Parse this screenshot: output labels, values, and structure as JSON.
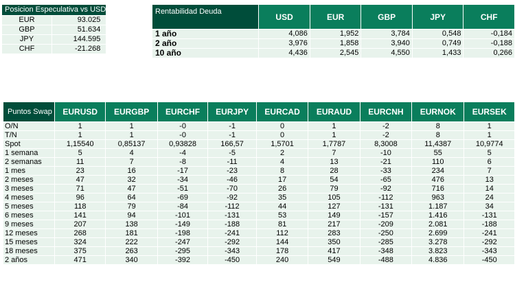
{
  "posicion": {
    "title": "Posicion Especulativa vs USD",
    "rows": [
      {
        "label": "EUR",
        "value": "93.025"
      },
      {
        "label": "GBP",
        "value": "51.634"
      },
      {
        "label": "JPY",
        "value": "144.595"
      },
      {
        "label": "CHF",
        "value": "-21.268"
      }
    ]
  },
  "rentabilidad": {
    "title": "Rentabilidad Deuda",
    "currencies": [
      "USD",
      "EUR",
      "GBP",
      "JPY",
      "CHF"
    ],
    "rows": [
      {
        "label": "1 año",
        "values": [
          "4,086",
          "1,952",
          "3,784",
          "0,548",
          "-0,184"
        ]
      },
      {
        "label": "2 año",
        "values": [
          "3,976",
          "1,858",
          "3,940",
          "0,749",
          "-0,188"
        ]
      },
      {
        "label": "10 año",
        "values": [
          "4,436",
          "2,545",
          "4,550",
          "1,433",
          "0,266"
        ]
      }
    ]
  },
  "swap": {
    "title": "Puntos Swap",
    "currencies": [
      "EURUSD",
      "EURGBP",
      "EURCHF",
      "EURJPY",
      "EURCAD",
      "EURAUD",
      "EURCNH",
      "EURNOK",
      "EURSEK"
    ],
    "rows": [
      {
        "label": "O/N",
        "values": [
          "1",
          "1",
          "-0",
          "-1",
          "0",
          "1",
          "-2",
          "8",
          "1"
        ]
      },
      {
        "label": "T/N",
        "values": [
          "1",
          "1",
          "-0",
          "-1",
          "0",
          "1",
          "-2",
          "8",
          "1"
        ]
      },
      {
        "label": "Spot",
        "values": [
          "1,15540",
          "0,85137",
          "0,93828",
          "166,57",
          "1,5701",
          "1,7787",
          "8,3008",
          "11,4387",
          "10,9774"
        ]
      },
      {
        "label": "1 semana",
        "values": [
          "5",
          "4",
          "-4",
          "-5",
          "2",
          "7",
          "-10",
          "55",
          "5"
        ]
      },
      {
        "label": "2 semanas",
        "values": [
          "11",
          "7",
          "-8",
          "-11",
          "4",
          "13",
          "-21",
          "110",
          "6"
        ]
      },
      {
        "label": "1 mes",
        "values": [
          "23",
          "16",
          "-17",
          "-23",
          "8",
          "28",
          "-33",
          "234",
          "7"
        ]
      },
      {
        "label": "2 meses",
        "values": [
          "47",
          "32",
          "-34",
          "-46",
          "17",
          "54",
          "-65",
          "476",
          "13"
        ]
      },
      {
        "label": "3 meses",
        "values": [
          "71",
          "47",
          "-51",
          "-70",
          "26",
          "79",
          "-92",
          "716",
          "14"
        ]
      },
      {
        "label": "4 meses",
        "values": [
          "96",
          "64",
          "-69",
          "-92",
          "35",
          "105",
          "-112",
          "963",
          "24"
        ]
      },
      {
        "label": "5 meses",
        "values": [
          "118",
          "79",
          "-84",
          "-112",
          "44",
          "127",
          "-131",
          "1.187",
          "34"
        ]
      },
      {
        "label": "6 meses",
        "values": [
          "141",
          "94",
          "-101",
          "-131",
          "53",
          "149",
          "-157",
          "1.416",
          "-131"
        ]
      },
      {
        "label": "9 meses",
        "values": [
          "207",
          "138",
          "-149",
          "-188",
          "81",
          "217",
          "-209",
          "2.081",
          "-188"
        ]
      },
      {
        "label": "12 meses",
        "values": [
          "268",
          "181",
          "-198",
          "-241",
          "112",
          "283",
          "-250",
          "2.699",
          "-241"
        ]
      },
      {
        "label": "15 meses",
        "values": [
          "324",
          "222",
          "-247",
          "-292",
          "144",
          "350",
          "-285",
          "3.278",
          "-292"
        ]
      },
      {
        "label": "18 meses",
        "values": [
          "375",
          "263",
          "-295",
          "-343",
          "178",
          "417",
          "-348",
          "3.823",
          "-343"
        ]
      },
      {
        "label": "2 años",
        "values": [
          "471",
          "340",
          "-392",
          "-450",
          "240",
          "549",
          "-488",
          "4.836",
          "-450"
        ]
      }
    ]
  }
}
